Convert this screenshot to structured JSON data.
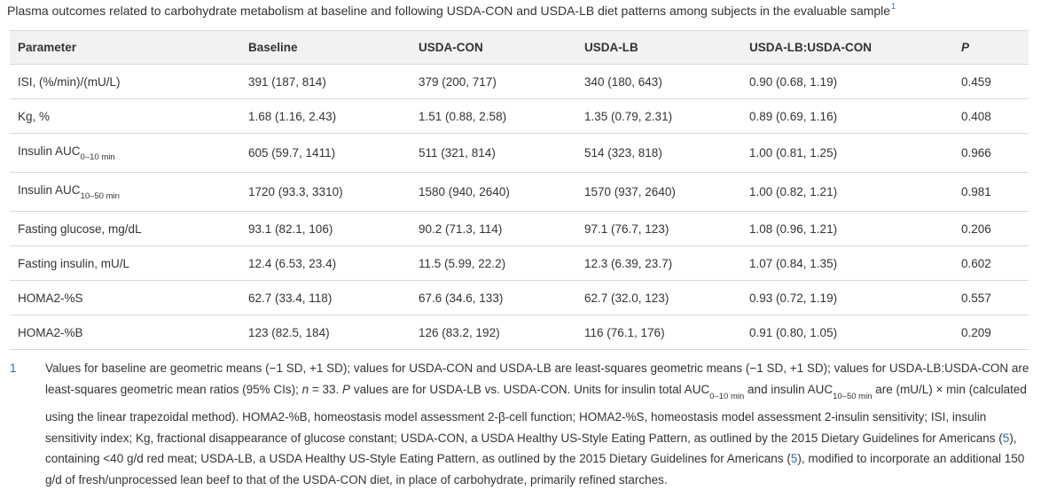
{
  "caption": {
    "text": "Plasma outcomes related to carbohydrate metabolism at baseline and following USDA-CON and USDA-LB diet patterns among subjects in the evaluable sample",
    "marker": "1"
  },
  "table": {
    "headers": [
      "Parameter",
      "Baseline",
      "USDA-CON",
      "USDA-LB",
      "USDA-LB:USDA-CON",
      "P"
    ],
    "rows": [
      {
        "param": "ISI, (%/min)/(mU/L)",
        "sub": "",
        "baseline": "391 (187, 814)",
        "con": "379 (200, 717)",
        "lb": "340 (180, 643)",
        "ratio": "0.90 (0.68, 1.19)",
        "p": "0.459"
      },
      {
        "param": "Kg, %",
        "sub": "",
        "baseline": "1.68 (1.16, 2.43)",
        "con": "1.51 (0.88, 2.58)",
        "lb": "1.35 (0.79, 2.31)",
        "ratio": "0.89 (0.69, 1.16)",
        "p": "0.408"
      },
      {
        "param": "Insulin AUC",
        "sub": "0–10 min",
        "baseline": "605 (59.7, 1411)",
        "con": "511 (321, 814)",
        "lb": "514 (323, 818)",
        "ratio": "1.00 (0.81, 1.25)",
        "p": "0.966"
      },
      {
        "param": "Insulin AUC",
        "sub": "10–50 min",
        "baseline": "1720 (93.3, 3310)",
        "con": "1580 (940, 2640)",
        "lb": "1570 (937, 2640)",
        "ratio": "1.00 (0.82, 1.21)",
        "p": "0.981"
      },
      {
        "param": "Fasting glucose, mg/dL",
        "sub": "",
        "baseline": "93.1 (82.1, 106)",
        "con": "90.2 (71.3, 114)",
        "lb": "97.1 (76.7, 123)",
        "ratio": "1.08 (0.96, 1.21)",
        "p": "0.206"
      },
      {
        "param": "Fasting insulin, mU/L",
        "sub": "",
        "baseline": "12.4 (6.53, 23.4)",
        "con": "11.5 (5.99, 22.2)",
        "lb": "12.3 (6.39, 23.7)",
        "ratio": "1.07 (0.84, 1.35)",
        "p": "0.602"
      },
      {
        "param": "HOMA2-%S",
        "sub": "",
        "baseline": "62.7 (33.4, 118)",
        "con": "67.6 (34.6, 133)",
        "lb": "62.7 (32.0, 123)",
        "ratio": "0.93 (0.72, 1.19)",
        "p": "0.557"
      },
      {
        "param": "HOMA2-%B",
        "sub": "",
        "baseline": "123 (82.5, 184)",
        "con": "126 (83.2, 192)",
        "lb": "116 (76.1, 176)",
        "ratio": "0.91 (0.80, 1.05)",
        "p": "0.209"
      }
    ]
  },
  "footnote": {
    "number": "1",
    "t1": "Values for baseline are geometric means (−1 SD, +1 SD); values for USDA-CON and USDA-LB are least-squares geometric means (−1 SD, +1 SD); values for USDA-LB:USDA-CON are least-squares geometric mean ratios (95% CIs); ",
    "n_label": "n",
    "t2": " = 33. ",
    "p_label": "P",
    "t3": " values are for USDA-LB vs. USDA-CON. Units for insulin total AUC",
    "sub_a": "0–10 min",
    "t4": " and insulin AUC",
    "sub_b": "10–50 min",
    "t5": " are (mU/L) × min (calculated using the linear trapezoidal method). HOMA2-%B, homeostasis model assessment 2-β-cell function; HOMA2-%S, homeostasis model assessment 2-insulin sensitivity; ISI, insulin sensitivity index; Kg, fractional disappearance of glucose constant; USDA-CON, a USDA Healthy US-Style Eating Pattern, as outlined by the 2015 Dietary Guidelines for Americans (",
    "ref1": "5",
    "t6": "), containing <40 g/d red meat; USDA-LB, a USDA Healthy US-Style Eating Pattern, as outlined by the 2015 Dietary Guidelines for Americans (",
    "ref2": "5",
    "t7": "), modified to incorporate an additional 150 g/d of fresh/unprocessed lean beef to that of the USDA-CON diet, in place of carbohydrate, primarily refined starches."
  },
  "colors": {
    "link": "#2a6fb0",
    "header_bg": "#f2f2f2",
    "rule": "#d9d9d9",
    "text": "#333333"
  }
}
